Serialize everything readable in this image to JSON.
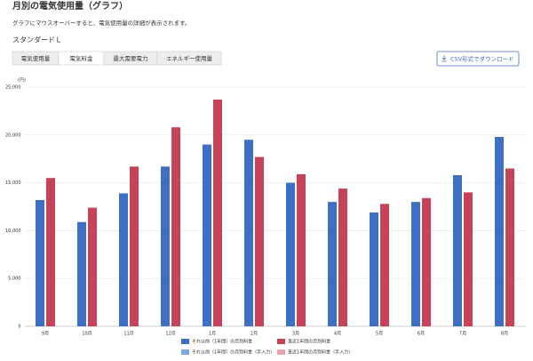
{
  "header": {
    "title": "月別の電気使用量（グラフ）",
    "subtitle": "グラフにマウスオーバーすると、電気使用量の詳細が表示されます。",
    "plan": "スタンダードＬ"
  },
  "tabs": [
    "電気使用量",
    "電気料金",
    "最大需要電力",
    "エネルギー使用量"
  ],
  "download_button": "CSV形式でダウンロード",
  "chart_data": {
    "type": "bar",
    "y_unit": "(円)",
    "categories": [
      "9月",
      "10月",
      "11月",
      "12月",
      "1月",
      "2月",
      "3月",
      "4月",
      "5月",
      "6月",
      "7月",
      "8月"
    ],
    "series": [
      {
        "name": "それ以前（1年間）の月別料金",
        "color": "#3d6fc4",
        "values": [
          13200,
          10900,
          13900,
          16700,
          19000,
          19500,
          15000,
          13000,
          11900,
          13000,
          15800,
          19800
        ]
      },
      {
        "name": "直近1年間の月別料金",
        "color": "#c7435a",
        "values": [
          15500,
          12400,
          16700,
          20800,
          23700,
          17700,
          15900,
          14400,
          12800,
          13400,
          14000,
          16500
        ]
      },
      {
        "name": "それ以前（1年間）の月別料金（手入力）",
        "color": "#80a8e4",
        "values": [
          null,
          null,
          null,
          null,
          null,
          null,
          null,
          null,
          null,
          null,
          null,
          null
        ]
      },
      {
        "name": "直近1年間の月別料金（手入力）",
        "color": "#e9a4ae",
        "values": [
          null,
          null,
          null,
          null,
          null,
          null,
          null,
          null,
          null,
          null,
          null,
          null
        ]
      }
    ],
    "ylim": [
      0,
      25000
    ],
    "yticks": [
      0,
      {
        "value": 5000,
        "label": "5,000"
      },
      {
        "value": 10000,
        "label": "10,000"
      },
      {
        "value": 15000,
        "label": "15,000"
      },
      {
        "value": 20000,
        "label": "20,000"
      },
      {
        "value": 25000,
        "label": "25,000"
      }
    ],
    "grid": true
  }
}
